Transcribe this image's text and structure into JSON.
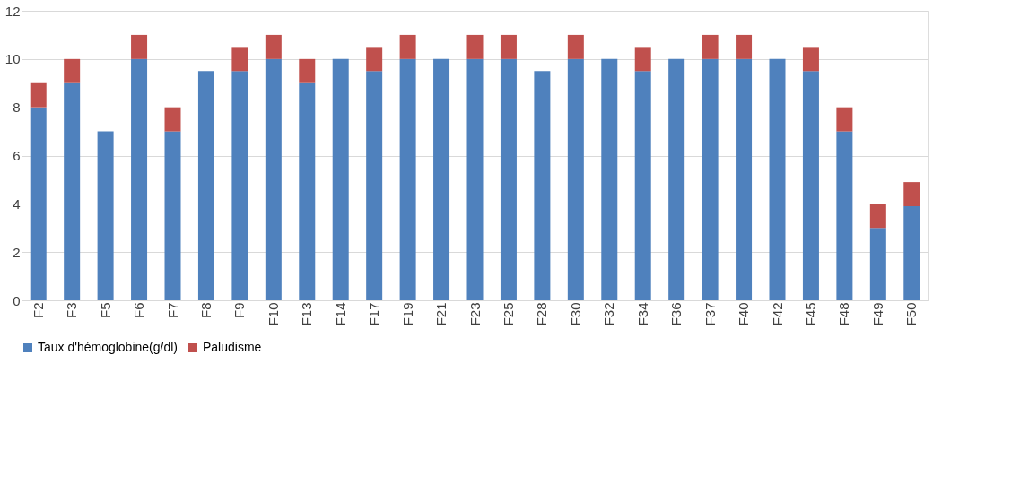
{
  "chart_data": {
    "type": "bar",
    "stacked": true,
    "categories": [
      "F2",
      "F3",
      "F5",
      "F6",
      "F7",
      "F8",
      "F9",
      "F10",
      "F13",
      "F14",
      "F17",
      "F19",
      "F21",
      "F23",
      "F25",
      "F28",
      "F30",
      "F32",
      "F34",
      "F36",
      "F37",
      "F40",
      "F42",
      "F45",
      "F48",
      "F49",
      "F50"
    ],
    "series": [
      {
        "name": "Taux d'hémoglobine(g/dl)",
        "color": "#4f81bd",
        "values": [
          8,
          9,
          7,
          10,
          7,
          9.5,
          9.5,
          10,
          9,
          10,
          9.5,
          10,
          10,
          10,
          10,
          9.5,
          10,
          10,
          9.5,
          10,
          10,
          10,
          10,
          9.5,
          7,
          3,
          3.9
        ]
      },
      {
        "name": "Paludisme",
        "color": "#c0504d",
        "values": [
          1,
          1,
          0,
          1,
          1,
          0,
          1,
          1,
          1,
          0,
          1,
          1,
          0,
          1,
          1,
          0,
          1,
          0,
          1,
          0,
          1,
          1,
          0,
          1,
          1,
          1,
          1
        ]
      }
    ],
    "ylim": [
      0,
      12
    ],
    "yticks": [
      0,
      2,
      4,
      6,
      8,
      10,
      12
    ],
    "grid": "y",
    "legend": "bottom"
  }
}
